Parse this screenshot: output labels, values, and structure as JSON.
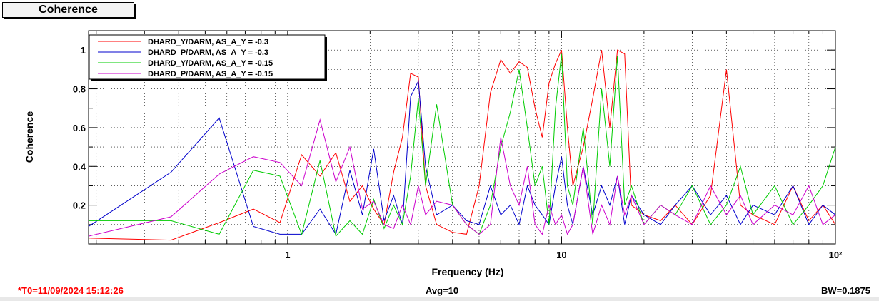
{
  "title": "Coherence",
  "status": {
    "t0": "*T0=11/09/2024 15:12:26",
    "avg": "Avg=10",
    "bw": "BW=0.1875"
  },
  "chart_data": {
    "type": "line",
    "title": "",
    "xlabel": "Frequency (Hz)",
    "ylabel": "Coherence",
    "x_scale": "log",
    "xlim": [
      0.1875,
      100
    ],
    "ylim": [
      0,
      1.1
    ],
    "yticks": [
      0.2,
      0.4,
      0.6,
      0.8,
      1
    ],
    "ytick_labels": [
      "0.2",
      "0.4",
      "0.6",
      "0.8",
      "1"
    ],
    "xticks": [
      1,
      10,
      100
    ],
    "xtick_labels": [
      "1",
      "10",
      "10²"
    ],
    "grid": true,
    "legend_position": "top-left",
    "series": [
      {
        "name": "DHARD_Y/DARM, AS_A_Y = -0.3",
        "color": "#ff0000",
        "x": [
          0.1875,
          0.375,
          0.5625,
          0.75,
          0.9375,
          1.125,
          1.3125,
          1.5,
          1.6875,
          1.875,
          2.0625,
          2.25,
          2.4375,
          2.625,
          2.8125,
          3.0,
          3.1875,
          3.5,
          4.0,
          4.5,
          5.0,
          5.5,
          6.0,
          6.5,
          7.0,
          7.5,
          8.0,
          8.5,
          9.0,
          9.5,
          10.0,
          10.5,
          11.0,
          12.0,
          13.0,
          14.0,
          15.0,
          16.0,
          17.0,
          18.0,
          20.0,
          23.0,
          26.0,
          30.0,
          35.0,
          40.0,
          45.0,
          50.0,
          60.0,
          70.0,
          80.0,
          90.0,
          100.0
        ],
        "y": [
          0.03,
          0.02,
          0.11,
          0.18,
          0.11,
          0.46,
          0.35,
          0.47,
          0.22,
          0.3,
          0.18,
          0.1,
          0.37,
          0.55,
          0.88,
          0.86,
          0.3,
          0.1,
          0.06,
          0.05,
          0.3,
          0.78,
          0.95,
          0.88,
          0.94,
          0.91,
          0.7,
          0.55,
          0.83,
          0.93,
          1.0,
          0.6,
          0.3,
          0.5,
          0.75,
          1.0,
          0.6,
          1.0,
          0.98,
          0.2,
          0.15,
          0.12,
          0.2,
          0.1,
          0.25,
          0.9,
          0.2,
          0.15,
          0.1,
          0.3,
          0.12,
          0.2,
          0.1
        ]
      },
      {
        "name": "DHARD_P/DARM, AS_A_Y = -0.3",
        "color": "#0000cc",
        "x": [
          0.1875,
          0.375,
          0.5625,
          0.75,
          0.9375,
          1.125,
          1.3125,
          1.5,
          1.6875,
          1.875,
          2.0625,
          2.25,
          2.4375,
          2.625,
          2.8125,
          3.0,
          3.1875,
          3.5,
          4.0,
          4.5,
          5.0,
          5.5,
          6.0,
          6.5,
          7.0,
          7.5,
          8.0,
          8.5,
          9.0,
          9.5,
          10.0,
          10.5,
          11.0,
          12.0,
          13.0,
          14.0,
          15.0,
          16.0,
          17.0,
          18.0,
          20.0,
          23.0,
          26.0,
          30.0,
          35.0,
          40.0,
          45.0,
          50.0,
          60.0,
          70.0,
          80.0,
          90.0,
          100.0
        ],
        "y": [
          0.09,
          0.37,
          0.65,
          0.09,
          0.05,
          0.05,
          0.18,
          0.05,
          0.38,
          0.15,
          0.49,
          0.12,
          0.25,
          0.1,
          0.76,
          0.84,
          0.4,
          0.15,
          0.2,
          0.12,
          0.1,
          0.3,
          0.15,
          0.2,
          0.1,
          0.3,
          0.2,
          0.15,
          0.1,
          0.3,
          0.45,
          0.2,
          0.1,
          0.4,
          0.15,
          0.3,
          0.2,
          0.35,
          0.1,
          0.25,
          0.15,
          0.1,
          0.2,
          0.3,
          0.15,
          0.25,
          0.1,
          0.2,
          0.15,
          0.3,
          0.1,
          0.2,
          0.15
        ]
      },
      {
        "name": "DHARD_Y/DARM, AS_A_Y = -0.15",
        "color": "#00cc00",
        "x": [
          0.1875,
          0.375,
          0.5625,
          0.75,
          0.9375,
          1.125,
          1.3125,
          1.5,
          1.6875,
          1.875,
          2.0625,
          2.25,
          2.4375,
          2.625,
          2.8125,
          3.0,
          3.1875,
          3.5,
          4.0,
          4.5,
          5.0,
          5.5,
          6.0,
          6.5,
          7.0,
          7.5,
          8.0,
          8.5,
          9.0,
          9.5,
          10.0,
          10.5,
          11.0,
          12.0,
          13.0,
          14.0,
          15.0,
          16.0,
          17.0,
          18.0,
          20.0,
          23.0,
          26.0,
          30.0,
          35.0,
          40.0,
          45.0,
          50.0,
          60.0,
          70.0,
          80.0,
          90.0,
          100.0
        ],
        "y": [
          0.12,
          0.12,
          0.05,
          0.38,
          0.35,
          0.05,
          0.43,
          0.04,
          0.12,
          0.05,
          0.23,
          0.08,
          0.2,
          0.1,
          0.35,
          0.75,
          0.3,
          0.72,
          0.2,
          0.1,
          0.05,
          0.2,
          0.5,
          0.68,
          0.9,
          0.6,
          0.3,
          0.4,
          0.1,
          0.7,
          0.98,
          0.3,
          0.2,
          0.6,
          0.1,
          0.8,
          0.4,
          0.97,
          0.2,
          0.3,
          0.1,
          0.2,
          0.15,
          0.3,
          0.1,
          0.2,
          0.4,
          0.15,
          0.3,
          0.1,
          0.2,
          0.3,
          0.5
        ]
      },
      {
        "name": "DHARD_P/DARM, AS_A_Y = -0.15",
        "color": "#cc00cc",
        "x": [
          0.1875,
          0.375,
          0.5625,
          0.75,
          0.9375,
          1.125,
          1.3125,
          1.5,
          1.6875,
          1.875,
          2.0625,
          2.25,
          2.4375,
          2.625,
          2.8125,
          3.0,
          3.1875,
          3.5,
          4.0,
          4.5,
          5.0,
          5.5,
          6.0,
          6.5,
          7.0,
          7.5,
          8.0,
          8.5,
          9.0,
          9.5,
          10.0,
          10.5,
          11.0,
          12.0,
          13.0,
          14.0,
          15.0,
          16.0,
          17.0,
          18.0,
          20.0,
          23.0,
          26.0,
          30.0,
          35.0,
          40.0,
          45.0,
          50.0,
          60.0,
          70.0,
          80.0,
          90.0,
          100.0
        ],
        "y": [
          0.04,
          0.14,
          0.36,
          0.45,
          0.42,
          0.3,
          0.64,
          0.32,
          0.5,
          0.18,
          0.22,
          0.1,
          0.08,
          0.2,
          0.1,
          0.3,
          0.15,
          0.22,
          0.2,
          0.1,
          0.05,
          0.1,
          0.55,
          0.3,
          0.2,
          0.4,
          0.1,
          0.05,
          0.2,
          0.1,
          0.15,
          0.05,
          0.1,
          0.4,
          0.05,
          0.2,
          0.1,
          0.35,
          0.15,
          0.25,
          0.1,
          0.2,
          0.15,
          0.1,
          0.3,
          0.15,
          0.25,
          0.1,
          0.2,
          0.15,
          0.3,
          0.1,
          0.15
        ]
      }
    ]
  }
}
